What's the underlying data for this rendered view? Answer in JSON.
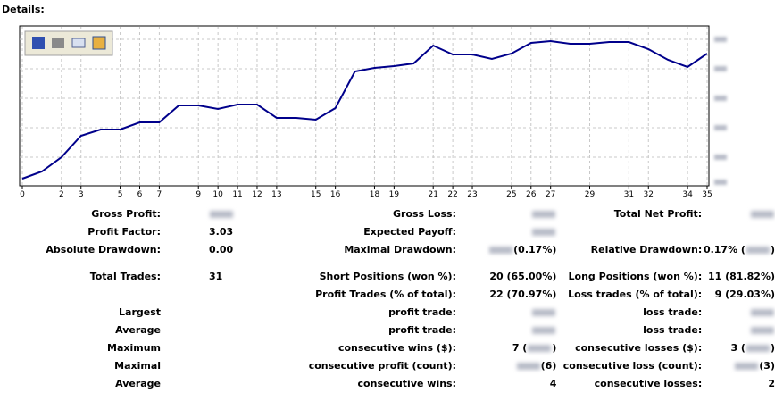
{
  "title": "Details:",
  "chart_data": {
    "type": "line",
    "x": [
      0,
      1,
      2,
      3,
      4,
      5,
      6,
      7,
      8,
      9,
      10,
      11,
      12,
      13,
      14,
      15,
      16,
      17,
      18,
      19,
      20,
      21,
      22,
      23,
      24,
      25,
      26,
      27,
      28,
      29,
      30,
      31,
      32,
      33,
      34,
      35
    ],
    "series": [
      {
        "color": "#00008b",
        "values": [
          8,
          16,
          32,
          56,
          63,
          63,
          71,
          71,
          90,
          90,
          86,
          91,
          91,
          76,
          76,
          74,
          87,
          128,
          132,
          134,
          137,
          157,
          147,
          147,
          142,
          148,
          160,
          162,
          159,
          159,
          161,
          161,
          153,
          141,
          133,
          148
        ]
      }
    ],
    "xlim": [
      0,
      35
    ],
    "ylim": [
      0,
      178
    ],
    "xticks": [
      0,
      2,
      3,
      5,
      6,
      7,
      9,
      10,
      11,
      12,
      13,
      15,
      16,
      18,
      19,
      21,
      22,
      23,
      25,
      26,
      27,
      29,
      31,
      32,
      34,
      35
    ]
  },
  "table": {
    "rows": [
      {
        "label1": "Gross Profit:",
        "label2": "Gross Loss:",
        "label3": "Total Net Profit:"
      },
      {
        "label1": "Profit Factor:",
        "value1": "3.03",
        "label2": "Expected Payoff:"
      },
      {
        "label1": "Absolute Drawdown:",
        "value1": "0.00",
        "label2": "Maximal Drawdown:",
        "value2": "(0.17%)",
        "label3": "Relative Drawdown:",
        "value3": "0.17% ("
      },
      {
        "label1": "Total Trades:",
        "value1": "31",
        "label2": "Short Positions (won %):",
        "value2": "20 (65.00%)",
        "label3": "Long Positions (won %):",
        "value3": "11 (81.82%)"
      },
      {
        "label2": "Profit Trades (% of total):",
        "value2": "22 (70.97%)",
        "label3": "Loss trades (% of total):",
        "value3": "9 (29.03%)"
      },
      {
        "label1": "Largest",
        "label2": "profit trade:",
        "label3": "loss trade:"
      },
      {
        "label1": "Average",
        "label2": "profit trade:",
        "label3": "loss trade:"
      },
      {
        "label1": "Maximum",
        "label2": "consecutive wins ($):",
        "value2": "7 (",
        "label3": "consecutive losses ($):",
        "value3": "3 ("
      },
      {
        "label1": "Maximal",
        "label2": "consecutive profit (count):",
        "value2": "(6)",
        "label3": "consecutive loss (count):",
        "value3": "(3)"
      },
      {
        "label1": "Average",
        "label2": "consecutive wins:",
        "value2": "4",
        "label3": "consecutive losses:",
        "value3": "2"
      }
    ]
  }
}
